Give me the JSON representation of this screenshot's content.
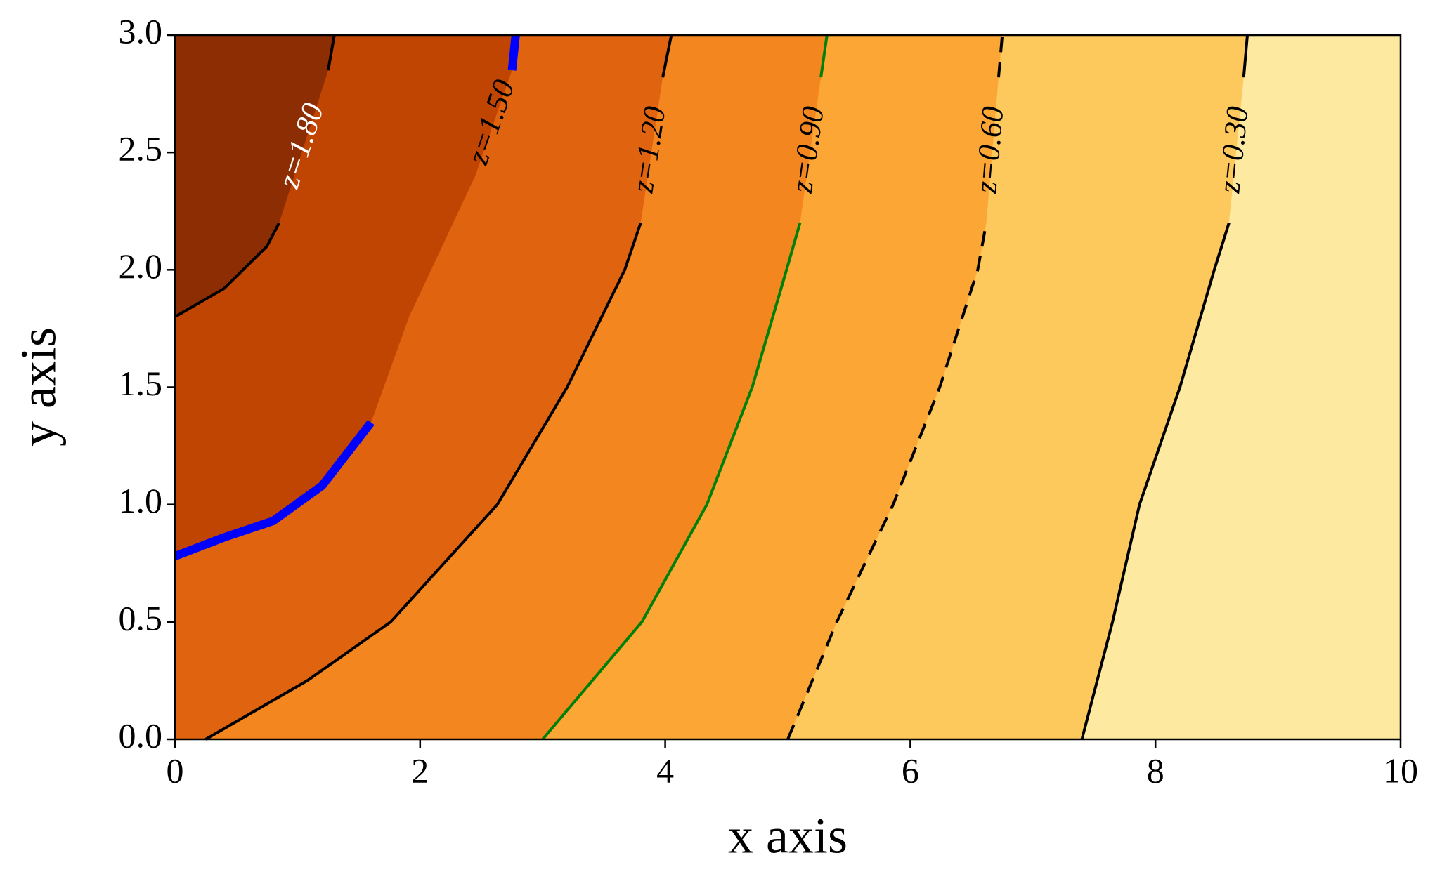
{
  "chart_data": {
    "type": "contour",
    "xlabel": "x axis",
    "ylabel": "y axis",
    "xlim": [
      0,
      10
    ],
    "ylim": [
      0,
      3
    ],
    "xticks": [
      0,
      2,
      4,
      6,
      8,
      10
    ],
    "yticks": [
      {
        "value": 0,
        "label": "0.0"
      },
      {
        "value": 0.5,
        "label": "0.5"
      },
      {
        "value": 1,
        "label": "1.0"
      },
      {
        "value": 1.5,
        "label": "1.5"
      },
      {
        "value": 2,
        "label": "2.0"
      },
      {
        "value": 2.5,
        "label": "2.5"
      },
      {
        "value": 3,
        "label": "3.0"
      }
    ],
    "fills": [
      "#8c2d04",
      "#c14502",
      "#e0640f",
      "#f3861f",
      "#fca636",
      "#fdc85c",
      "#fde9a0"
    ],
    "contours": [
      {
        "label": "z=1.80",
        "color": "#000000",
        "label_color": "#ffffff",
        "linestyle": "solid",
        "x": [
          0,
          0.4,
          0.75,
          0.85,
          null,
          1.25,
          1.3
        ],
        "y": [
          1.8,
          1.92,
          2.1,
          2.2,
          null,
          2.85,
          3
        ]
      },
      {
        "label": "z=1.50",
        "color": "#0000ff",
        "label_color": "#000000",
        "linestyle": "bold",
        "x": [
          0,
          0.4,
          0.8,
          1.2,
          1.6,
          null,
          1.91,
          null,
          2.45,
          null,
          2.75,
          2.78
        ],
        "y": [
          0.78,
          0.86,
          0.93,
          1.08,
          1.35,
          null,
          1.8,
          null,
          2.4,
          null,
          2.85,
          3
        ]
      },
      {
        "label": "z=1.20",
        "color": "#000000",
        "label_color": "#000000",
        "linestyle": "solid",
        "x": [
          0.25,
          1.08,
          1.76,
          2.63,
          3.2,
          3.67,
          3.8,
          null,
          3.98,
          4.05
        ],
        "y": [
          0,
          0.25,
          0.5,
          1,
          1.5,
          2,
          2.2,
          null,
          2.82,
          3
        ]
      },
      {
        "label": "z=0.90",
        "color": "#008000",
        "label_color": "#000000",
        "linestyle": "solid",
        "x": [
          3,
          3.81,
          4.34,
          4.71,
          4.99,
          5.1,
          null,
          5.27,
          5.32
        ],
        "y": [
          0,
          0.5,
          1,
          1.5,
          2,
          2.2,
          null,
          2.82,
          3
        ]
      },
      {
        "label": "z=0.60",
        "color": "#000000",
        "label_color": "#000000",
        "linestyle": "dashed",
        "x": [
          5,
          5.4,
          5.86,
          6.24,
          6.55,
          6.62,
          null,
          6.72,
          6.75
        ],
        "y": [
          0,
          0.5,
          1,
          1.5,
          2,
          2.2,
          null,
          2.82,
          3
        ]
      },
      {
        "label": "z=0.30",
        "color": "#000000",
        "label_color": "#000000",
        "linestyle": "solid",
        "x": [
          7.4,
          7.65,
          7.87,
          8.2,
          8.48,
          8.6,
          null,
          8.72,
          8.75
        ],
        "y": [
          0,
          0.5,
          1,
          1.5,
          2,
          2.2,
          null,
          2.82,
          3
        ]
      }
    ]
  }
}
